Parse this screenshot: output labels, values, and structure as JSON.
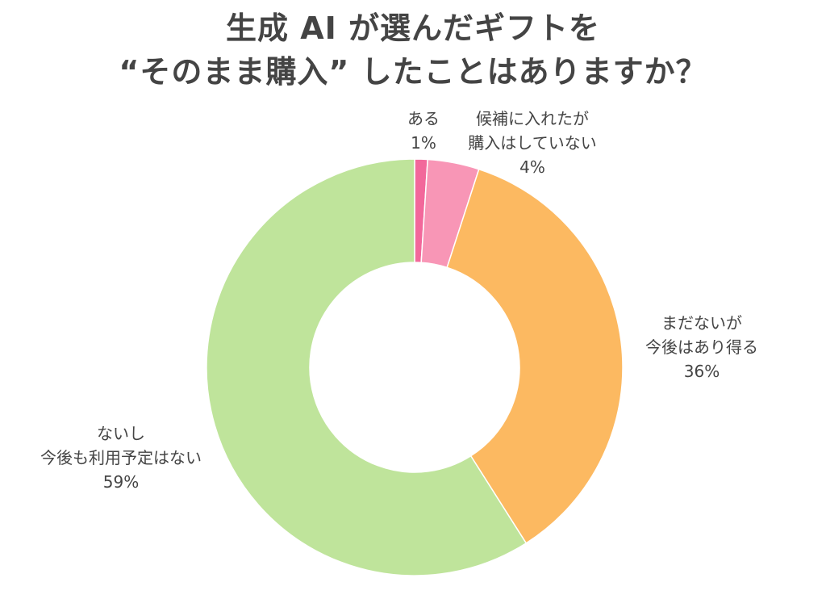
{
  "title": {
    "line1": "生成 AI が選んだギフトを",
    "line2": "“そのまま購入” したことはありますか？"
  },
  "chart_data": {
    "type": "pie",
    "donut": true,
    "categories": [
      "ある",
      "候補に入れたが購入はしていない",
      "まだないが今後はあり得る",
      "ないし今後も利用予定はない"
    ],
    "values": [
      1,
      4,
      36,
      59
    ],
    "colors": [
      "#f2689b",
      "#f896b6",
      "#fcb961",
      "#bfe49b"
    ],
    "labels": [
      {
        "lines": [
          "ある"
        ],
        "pct": "1%"
      },
      {
        "lines": [
          "候補に入れたが",
          "購入はしていない"
        ],
        "pct": "4%"
      },
      {
        "lines": [
          "まだないが",
          "今後はあり得る"
        ],
        "pct": "36%"
      },
      {
        "lines": [
          "ないし",
          "今後も利用予定はない"
        ],
        "pct": "59%"
      }
    ],
    "start_angle": "top",
    "direction": "clockwise",
    "legend": "none"
  }
}
